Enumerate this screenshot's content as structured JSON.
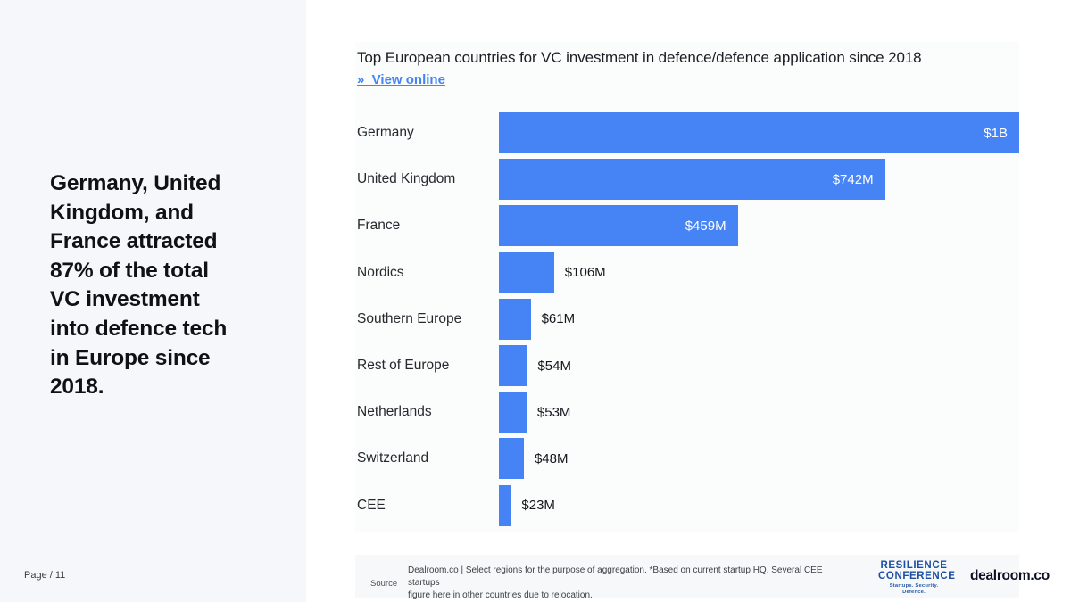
{
  "page": {
    "page_label": "Page / 11"
  },
  "sidebar": {
    "headline": "Germany, United\nKingdom, and\nFrance attracted\n87% of the total\nVC  investment\ninto defence tech\nin Europe since\n2018."
  },
  "header": {
    "title": "Top European countries for VC investment in defence/defence application since 2018",
    "link_label": "»  View online"
  },
  "chart_data": {
    "type": "bar",
    "orientation": "horizontal",
    "title": "Top European countries for VC investment in defence/defence application since 2018",
    "unit": "USD (M = millions, B = billions)",
    "categories": [
      "Germany",
      "United Kingdom",
      "France",
      "Nordics",
      "Southern Europe",
      "Rest of Europe",
      "Netherlands",
      "Switzerland",
      "CEE"
    ],
    "values": [
      1000,
      742,
      459,
      106,
      61,
      54,
      53,
      48,
      23
    ],
    "value_labels": [
      "$1B",
      "$742M",
      "$459M",
      "$106M",
      "$61M",
      "$54M",
      "$53M",
      "$48M",
      "$23M"
    ],
    "xlim": [
      0,
      1000
    ],
    "grid": false,
    "legend": false,
    "bar_color": "#4683f4",
    "inside_label_threshold_pct": 30
  },
  "footer": {
    "source_label": "Source",
    "source_text": "Dealroom.co | Select regions for the purpose of aggregation.  *Based on current startup HQ. Several CEE startups\nfigure here in other countries due to relocation."
  },
  "logos": {
    "resilience": {
      "line1": "RESILIENCE",
      "line2": "CONFERENCE",
      "tagline": "Startups. Security. Defence."
    },
    "dealroom": "dealroom.co"
  },
  "colors": {
    "bar": "#4683f4",
    "link": "#4285f4",
    "sidebar_bg": "#f5f7fb",
    "resilience_blue": "#1d4fa1",
    "dealroom_navy": "#0d1022"
  }
}
